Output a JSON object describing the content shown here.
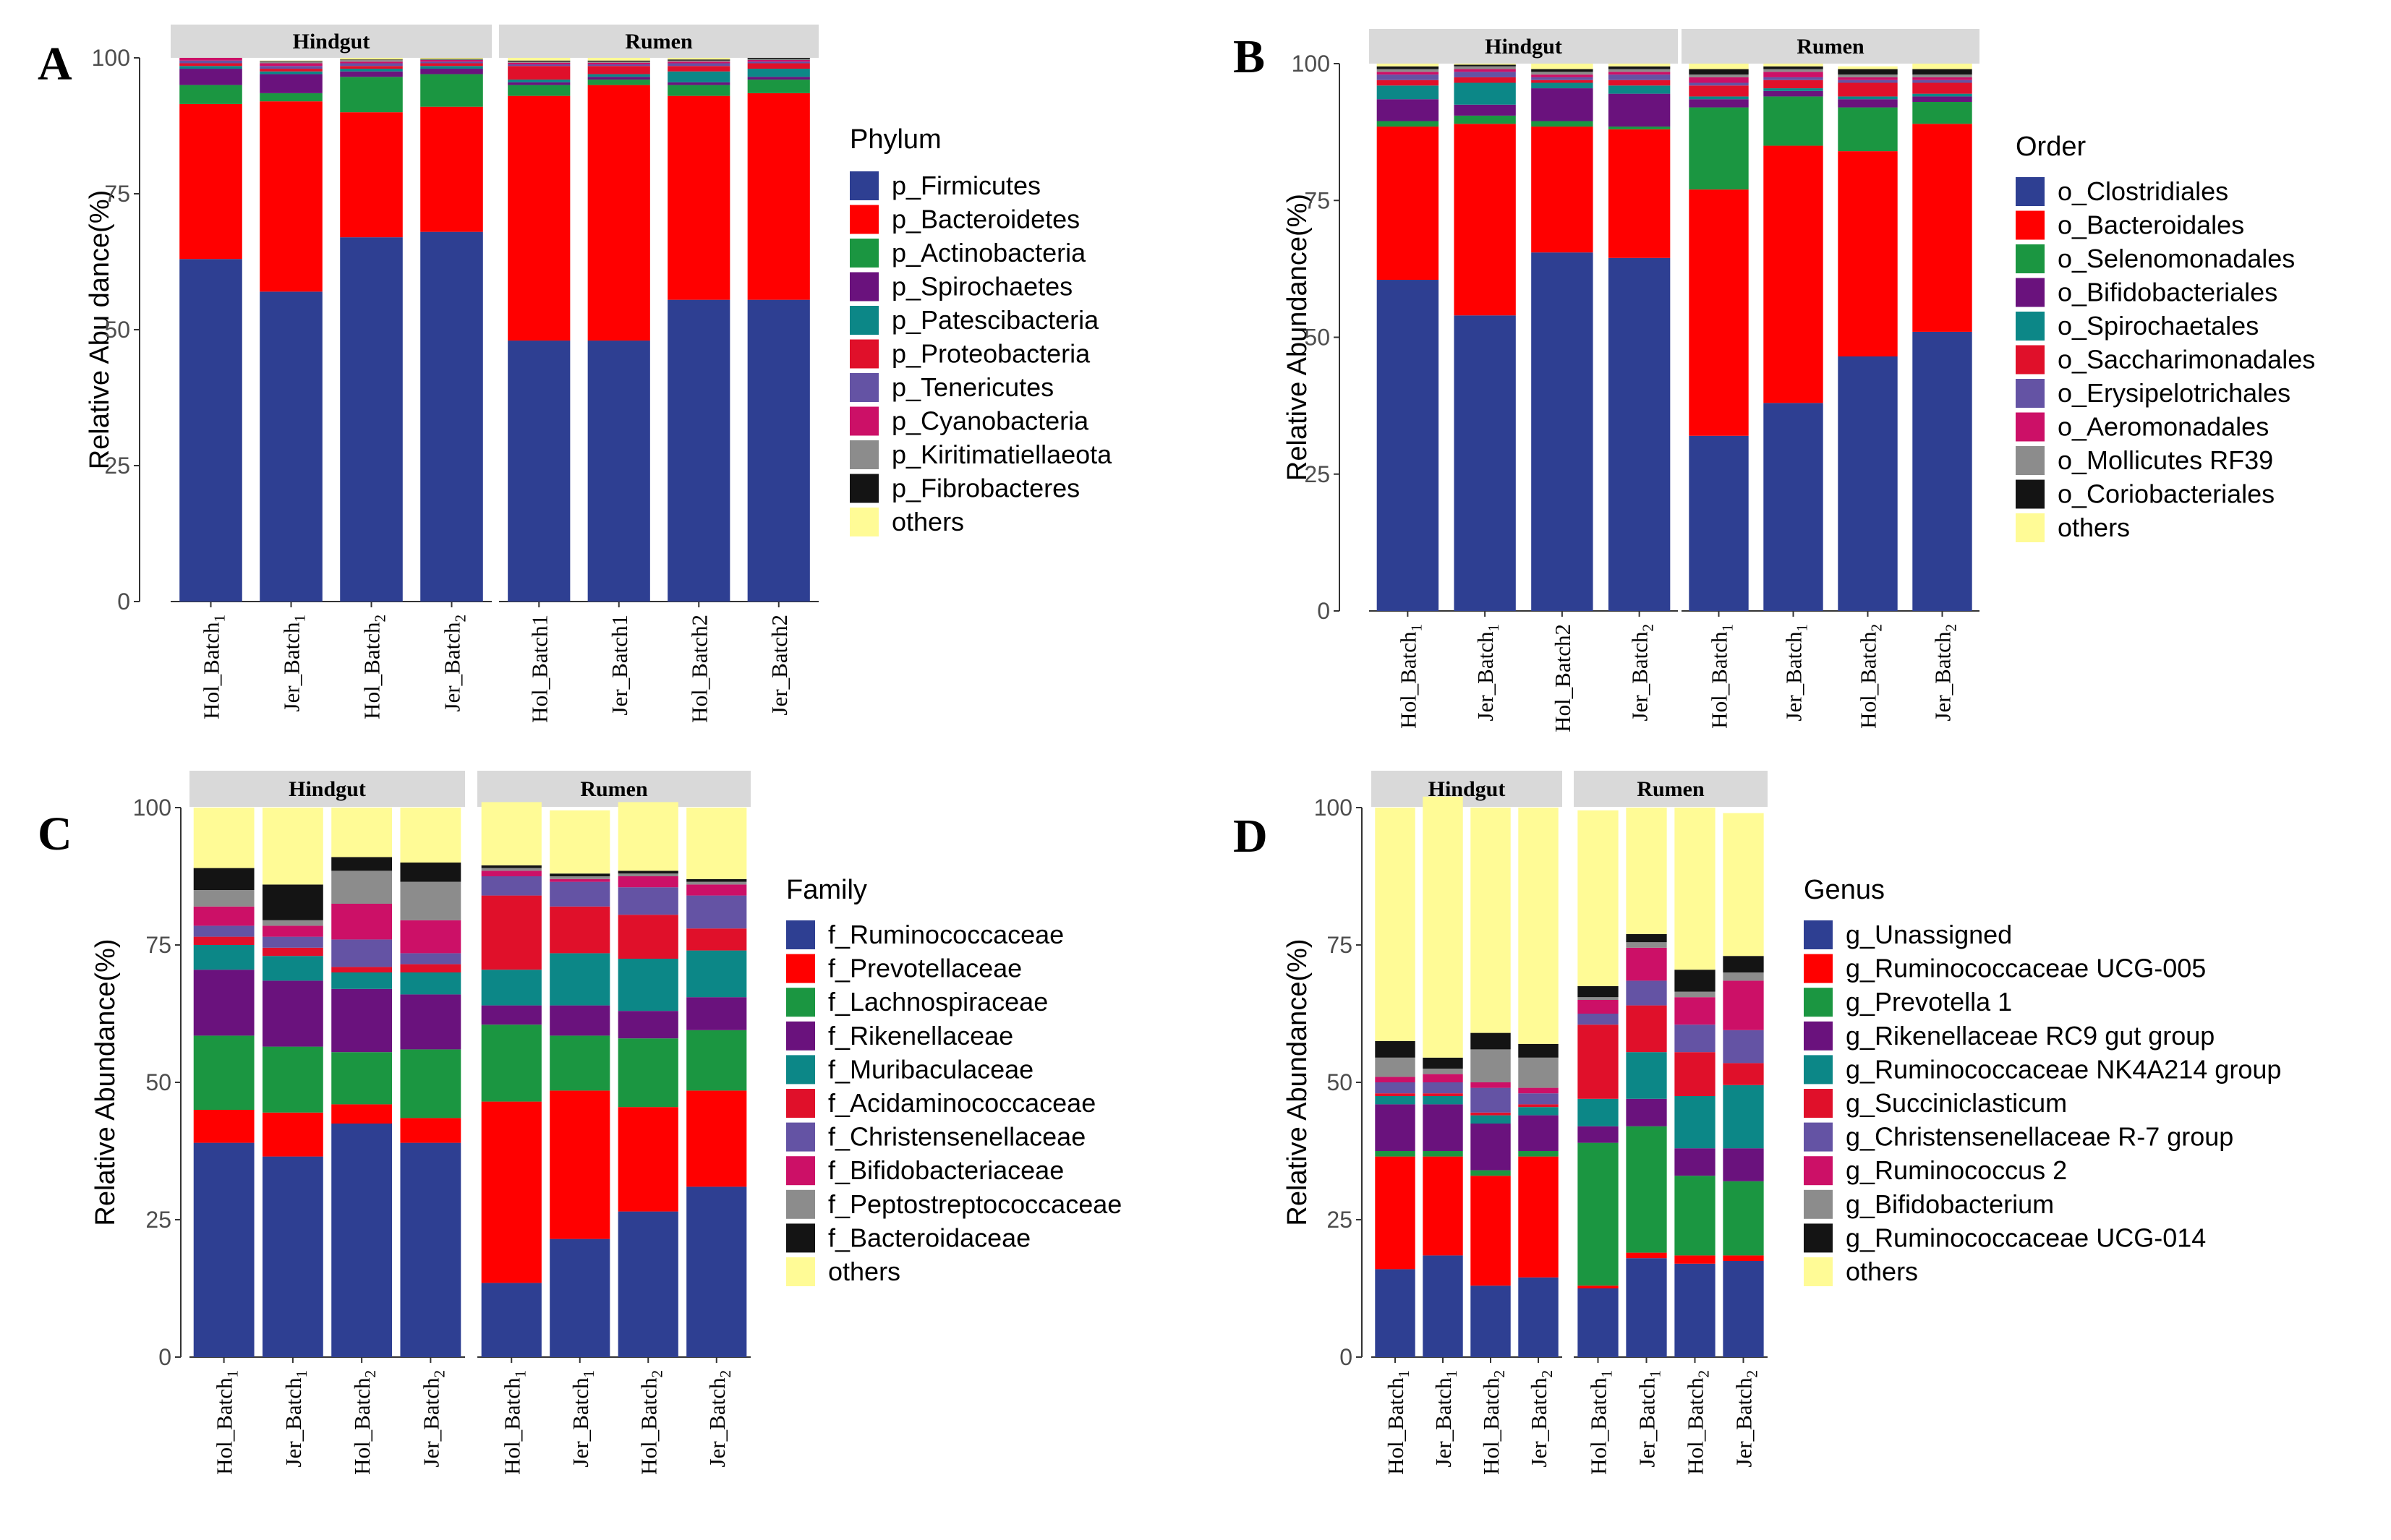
{
  "colors": {
    "blue": "#2E3F92",
    "red": "#FF0000",
    "green": "#1B9641",
    "purple": "#6A127D",
    "teal": "#0C8787",
    "crimson": "#E0102A",
    "slate": "#6453A4",
    "magenta": "#CC1067",
    "grey": "#8C8C8C",
    "black": "#141414",
    "yellow": "#FFFB96"
  },
  "chart_data": [
    {
      "type": "bar",
      "panel": "A",
      "ylabel": "Relative Abu dance(%)",
      "ylim": [
        0,
        100
      ],
      "yticks": [
        "0",
        "25",
        "50",
        "75",
        "100"
      ],
      "facets": [
        "Hindgut",
        "Rumen"
      ],
      "categories": [
        {
          "base": "Hol_Batch",
          "sub": "1"
        },
        {
          "base": "Jer_Batch",
          "sub": "1"
        },
        {
          "base": "Hol_Batch",
          "sub": "2"
        },
        {
          "base": "Jer_Batch",
          "sub": "2"
        },
        {
          "base": "Hol_Batch1",
          "sub": ""
        },
        {
          "base": "Jer_Batch1",
          "sub": ""
        },
        {
          "base": "Hol_Batch2",
          "sub": ""
        },
        {
          "base": "Jer_Batch2",
          "sub": ""
        }
      ],
      "legend_title": "Phylum",
      "series": [
        {
          "name": "p_Firmicutes",
          "color": "#2E3F92",
          "values": [
            63,
            57,
            67,
            68,
            48,
            48,
            55.5,
            55.5
          ]
        },
        {
          "name": "p_Bacteroidetes",
          "color": "#FF0000",
          "values": [
            28.5,
            35,
            23,
            23,
            45,
            47,
            37.5,
            38
          ]
        },
        {
          "name": "p_Actinobacteria",
          "color": "#1B9641",
          "values": [
            3.5,
            1.5,
            6.5,
            6,
            2,
            1,
            2,
            2.5
          ]
        },
        {
          "name": "p_Spirochaetes",
          "color": "#6A127D",
          "values": [
            3,
            3.5,
            1,
            1,
            0.5,
            0.5,
            0.5,
            0.5
          ]
        },
        {
          "name": "p_Patescibacteria",
          "color": "#0C8787",
          "values": [
            0.5,
            0.5,
            0.5,
            0.5,
            0.5,
            0.5,
            2,
            1.5
          ]
        },
        {
          "name": "p_Proteobacteria",
          "color": "#E0102A",
          "values": [
            0.5,
            0.5,
            0.5,
            0.5,
            2.5,
            1.5,
            1,
            1
          ]
        },
        {
          "name": "p_Tenericutes",
          "color": "#6453A4",
          "values": [
            0.5,
            0.5,
            0.5,
            0.3,
            0.3,
            0.3,
            0.5,
            0.3
          ]
        },
        {
          "name": "p_Cyanobacteria",
          "color": "#CC1067",
          "values": [
            0.5,
            0.5,
            0.3,
            0.3,
            0.3,
            0.3,
            0.3,
            0.3
          ]
        },
        {
          "name": "p_Kiritimatiellaeota",
          "color": "#8C8C8C",
          "values": [
            0,
            0.3,
            0.3,
            0.1,
            0.2,
            0.2,
            0.2,
            0.2
          ]
        },
        {
          "name": "p_Fibrobacteres",
          "color": "#141414",
          "values": [
            0,
            0.1,
            0.1,
            0.1,
            0.2,
            0.2,
            0.2,
            0.2
          ]
        },
        {
          "name": "others",
          "color": "#FFFB96",
          "values": [
            0,
            0.1,
            0.3,
            0.2,
            0.5,
            0.5,
            0.3,
            0
          ]
        }
      ]
    },
    {
      "type": "bar",
      "panel": "B",
      "ylabel": "Relative Abundance(%)",
      "ylim": [
        0,
        100
      ],
      "yticks": [
        "0",
        "25",
        "50",
        "75",
        "100"
      ],
      "facets": [
        "Hindgut",
        "Rumen"
      ],
      "categories": [
        {
          "base": "Hol_Batch",
          "sub": "1"
        },
        {
          "base": "Jer_Batch",
          "sub": "1"
        },
        {
          "base": "Hol_Batch2",
          "sub": ""
        },
        {
          "base": "Jer_Batch",
          "sub": "2"
        },
        {
          "base": "Hol_Batch",
          "sub": "1"
        },
        {
          "base": "Jer_Batch",
          "sub": "1"
        },
        {
          "base": "Hol_Batch",
          "sub": "2"
        },
        {
          "base": "Jer_Batch",
          "sub": "2"
        }
      ],
      "legend_title": "Order",
      "series": [
        {
          "name": "o_Clostridiales",
          "color": "#2E3F92",
          "values": [
            60.5,
            54,
            65.5,
            64.5,
            32,
            38,
            46.5,
            51
          ]
        },
        {
          "name": "o_Bacteroidales",
          "color": "#FF0000",
          "values": [
            28,
            35,
            23,
            23.5,
            45,
            47,
            37.5,
            38
          ]
        },
        {
          "name": "o_Selenomonadales",
          "color": "#1B9641",
          "values": [
            1,
            1.5,
            1,
            0.5,
            15,
            9,
            8,
            4
          ]
        },
        {
          "name": "o_Bifidobacteriales",
          "color": "#6A127D",
          "values": [
            4,
            2,
            6,
            6,
            1.5,
            1,
            1.5,
            1
          ]
        },
        {
          "name": "o_Spirochaetales",
          "color": "#0C8787",
          "values": [
            2.5,
            4,
            1,
            1.5,
            0.5,
            0.5,
            0.5,
            0.5
          ]
        },
        {
          "name": "o_Saccharimonadales",
          "color": "#E0102A",
          "values": [
            1,
            1,
            0.5,
            1,
            2,
            1.5,
            2.5,
            2
          ]
        },
        {
          "name": "o_Erysipelotrichales",
          "color": "#6453A4",
          "values": [
            1,
            1,
            0.5,
            1,
            0.5,
            0.5,
            0.5,
            0.5
          ]
        },
        {
          "name": "o_Aeromonadales",
          "color": "#CC1067",
          "values": [
            0.5,
            0.5,
            0.5,
            0.5,
            1,
            1,
            0.5,
            0.5
          ]
        },
        {
          "name": "o_Mollicutes RF39",
          "color": "#8C8C8C",
          "values": [
            0.5,
            0.5,
            0.5,
            0.5,
            0.5,
            0.5,
            0.5,
            0.5
          ]
        },
        {
          "name": "o_Coriobacteriales",
          "color": "#141414",
          "values": [
            0.5,
            0.3,
            0.5,
            0.5,
            1,
            0.5,
            1,
            1
          ]
        },
        {
          "name": "others",
          "color": "#FFFB96",
          "values": [
            0.5,
            0.2,
            1,
            0.5,
            1,
            0.5,
            0.5,
            1
          ]
        }
      ]
    },
    {
      "type": "bar",
      "panel": "C",
      "ylabel": "Relative Abundance(%)",
      "ylim": [
        0,
        100
      ],
      "yticks": [
        "0",
        "25",
        "50",
        "75",
        "100"
      ],
      "facets": [
        "Hindgut",
        "Rumen"
      ],
      "categories": [
        {
          "base": "Hol_Batch",
          "sub": "1"
        },
        {
          "base": "Jer_Batch",
          "sub": "1"
        },
        {
          "base": "Hol_Batch",
          "sub": "2"
        },
        {
          "base": "Jer_Batch",
          "sub": "2"
        },
        {
          "base": "Hol_Batch",
          "sub": "1"
        },
        {
          "base": "Jer_Batch",
          "sub": "1"
        },
        {
          "base": "Hol_Batch",
          "sub": "2"
        },
        {
          "base": "Jer_Batch",
          "sub": "2"
        }
      ],
      "legend_title": "Family",
      "series": [
        {
          "name": "f_Ruminococcaceae",
          "color": "#2E3F92",
          "values": [
            39,
            36.5,
            42.5,
            39,
            13.5,
            21.5,
            26.5,
            31
          ]
        },
        {
          "name": "f_Prevotellaceae",
          "color": "#FF0000",
          "values": [
            6,
            8,
            3.5,
            4.5,
            33,
            27,
            19,
            17.5
          ]
        },
        {
          "name": "f_Lachnospiraceae",
          "color": "#1B9641",
          "values": [
            13.5,
            12,
            9.5,
            12.5,
            14,
            10,
            12.5,
            11
          ]
        },
        {
          "name": "f_Rikenellaceae",
          "color": "#6A127D",
          "values": [
            12,
            12,
            11.5,
            10,
            3.5,
            5.5,
            5,
            6
          ]
        },
        {
          "name": "f_Muribaculaceae",
          "color": "#0C8787",
          "values": [
            4.5,
            4.5,
            3,
            4,
            6.5,
            9.5,
            9.5,
            8.5
          ]
        },
        {
          "name": "f_Acidaminococcaceae",
          "color": "#E0102A",
          "values": [
            1.5,
            1.5,
            1,
            1.5,
            13.5,
            8.5,
            8,
            4
          ]
        },
        {
          "name": "f_Christensenellaceae",
          "color": "#6453A4",
          "values": [
            2,
            2,
            5,
            2,
            3.5,
            4.5,
            5,
            6
          ]
        },
        {
          "name": "f_Bifidobacteriaceae",
          "color": "#CC1067",
          "values": [
            3.5,
            2,
            6.5,
            6,
            1,
            0.5,
            2,
            2
          ]
        },
        {
          "name": "f_Peptostreptococcaceae",
          "color": "#8C8C8C",
          "values": [
            3,
            1,
            6,
            7,
            0.5,
            0.5,
            0.5,
            0.5
          ]
        },
        {
          "name": "f_Bacteroidaceae",
          "color": "#141414",
          "values": [
            4,
            6.5,
            2.5,
            3.5,
            0.5,
            0.5,
            0.5,
            0.5
          ]
        },
        {
          "name": "others",
          "color": "#FFFB96",
          "values": [
            11,
            14,
            9,
            10,
            11.5,
            11.5,
            12.5,
            13
          ]
        }
      ]
    },
    {
      "type": "bar",
      "panel": "D",
      "ylabel": "Relative Abundance(%)",
      "ylim": [
        0,
        100
      ],
      "yticks": [
        "0",
        "25",
        "50",
        "75",
        "100"
      ],
      "facets": [
        "Hindgut",
        "Rumen"
      ],
      "categories": [
        {
          "base": "Hol_Batch",
          "sub": "1"
        },
        {
          "base": "Jer_Batch",
          "sub": "1"
        },
        {
          "base": "Hol_Batch",
          "sub": "2"
        },
        {
          "base": "Jer_Batch",
          "sub": "2"
        },
        {
          "base": "Hol_Batch",
          "sub": "1"
        },
        {
          "base": "Jer_Batch",
          "sub": "1"
        },
        {
          "base": "Hol_Batch",
          "sub": "2"
        },
        {
          "base": "Jer_Batch",
          "sub": "2"
        }
      ],
      "legend_title": "Genus",
      "series": [
        {
          "name": "g_Unassigned",
          "color": "#2E3F92",
          "values": [
            16,
            18.5,
            13,
            14.5,
            12.5,
            18,
            17,
            17.5
          ]
        },
        {
          "name": "g_Ruminococcaceae UCG-005",
          "color": "#FF0000",
          "values": [
            20.5,
            18,
            20,
            22,
            0.5,
            1,
            1.5,
            1
          ]
        },
        {
          "name": "g_Prevotella 1",
          "color": "#1B9641",
          "values": [
            1,
            1,
            1,
            1,
            26,
            23,
            14.5,
            13.5
          ]
        },
        {
          "name": "g_Rikenellaceae RC9 gut group",
          "color": "#6A127D",
          "values": [
            8.5,
            8.5,
            8.5,
            6.5,
            3,
            5,
            5,
            6
          ]
        },
        {
          "name": "g_Ruminococcaceae NK4A214 group",
          "color": "#0C8787",
          "values": [
            1.5,
            1.5,
            1.5,
            1.5,
            5,
            8.5,
            9.5,
            11.5
          ]
        },
        {
          "name": "g_Succiniclasticum",
          "color": "#E0102A",
          "values": [
            0.5,
            0.5,
            0.5,
            0.5,
            13.5,
            8.5,
            8,
            4
          ]
        },
        {
          "name": "g_Christensenellaceae R-7 group",
          "color": "#6453A4",
          "values": [
            2,
            2,
            4.5,
            2,
            2,
            4.5,
            5,
            6
          ]
        },
        {
          "name": "g_Ruminococcus 2",
          "color": "#CC1067",
          "values": [
            1,
            1.5,
            1,
            1,
            2.5,
            6,
            5,
            9
          ]
        },
        {
          "name": "g_Bifidobacterium",
          "color": "#8C8C8C",
          "values": [
            3.5,
            1,
            6,
            5.5,
            0.5,
            1,
            1,
            1.5
          ]
        },
        {
          "name": "g_Ruminococcaceae UCG-014",
          "color": "#141414",
          "values": [
            3,
            2,
            3,
            2.5,
            2,
            1.5,
            4,
            3
          ]
        },
        {
          "name": "others",
          "color": "#FFFB96",
          "values": [
            42.5,
            47.5,
            41,
            43,
            32,
            23,
            29.5,
            26
          ]
        }
      ]
    }
  ]
}
